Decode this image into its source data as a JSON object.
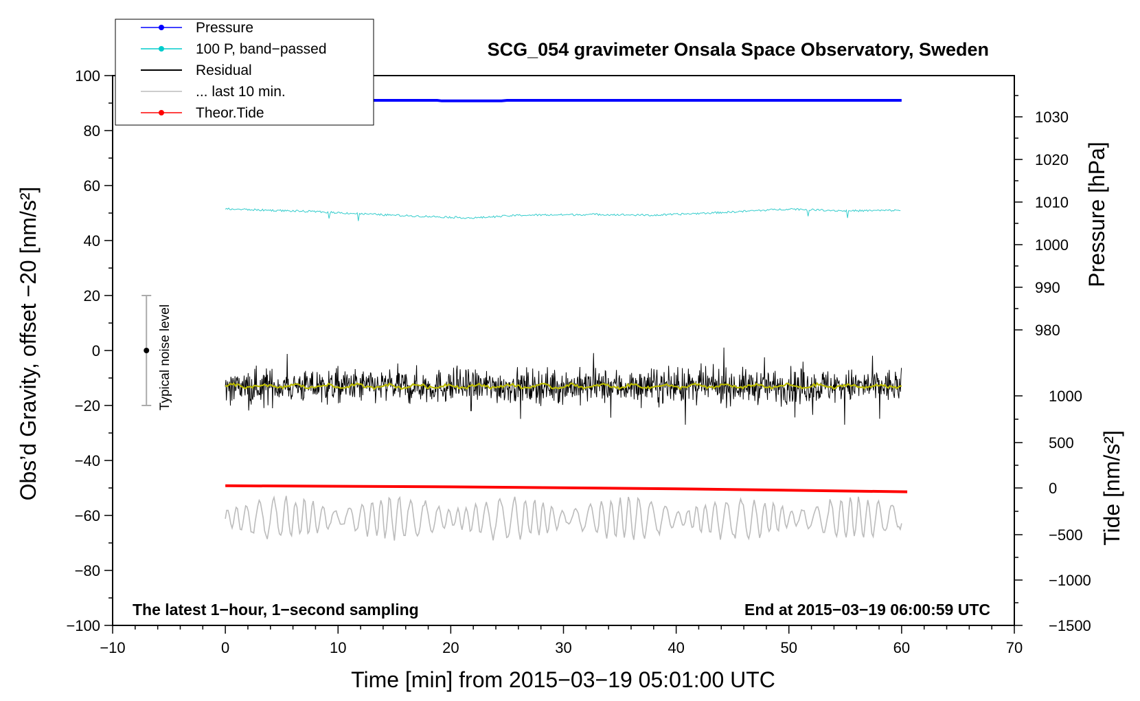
{
  "chart_data": {
    "type": "line",
    "title": "SCG_054 gravimeter Onsala Space Observatory, Sweden",
    "xlabel": "Time [min] from 2015−03−19 05:01:00 UTC",
    "ylabel_left": "Obs’d Gravity, offset −20 [nm/s²]",
    "ylabel_pressure": "Pressure [hPa]",
    "ylabel_tide": "Tide [nm/s²]",
    "xlim": [
      -10,
      70
    ],
    "ylim": [
      -100,
      100
    ],
    "x_ticks": [
      -10,
      0,
      10,
      20,
      30,
      40,
      50,
      60,
      70
    ],
    "x_tick_labels": [
      "−10",
      "0",
      "10",
      "20",
      "30",
      "40",
      "50",
      "60",
      "70"
    ],
    "y_ticks": [
      100,
      80,
      60,
      40,
      20,
      0,
      -20,
      -40,
      -60,
      -80,
      -100
    ],
    "y_tick_labels": [
      "100",
      "80",
      "60",
      "40",
      "20",
      "0",
      "−20",
      "−40",
      "−60",
      "−80",
      "−100"
    ],
    "pressure_axis": {
      "ticks": [
        1030,
        1020,
        1010,
        1000,
        990,
        980
      ],
      "tick_labels": [
        "1030",
        "1020",
        "1010",
        "1000",
        "990",
        "980"
      ],
      "gravity_at": [
        85,
        69.5,
        54,
        38.5,
        23,
        7.5
      ]
    },
    "tide_axis": {
      "ticks": [
        1000,
        500,
        0,
        -500,
        -1000,
        -1500
      ],
      "tick_labels": [
        "1000",
        "500",
        "0",
        "−500",
        "−1000",
        "−1500"
      ],
      "gravity_at": [
        -16.5,
        -33.5,
        -50,
        -67,
        -83.5,
        -100
      ]
    },
    "legend": [
      {
        "label": "Pressure",
        "color": "#0000ff",
        "marker": true
      },
      {
        "label": "100 P, band−passed",
        "color": "#00cccc",
        "marker": true
      },
      {
        "label": "Residual",
        "color": "#000000",
        "marker": false
      },
      {
        "label": "... last 10 min.",
        "color": "#bbbbbb",
        "marker": false
      },
      {
        "label": "Theor.Tide",
        "color": "#ff0000",
        "marker": true
      }
    ],
    "legend_position": "top-left",
    "annotations": {
      "left": "The latest 1−hour, 1−second sampling",
      "right": "End at 2015−03−19 06:00:59 UTC"
    },
    "noise_level": {
      "label": "Typical noise level",
      "x": -7,
      "center": 0,
      "range": [
        -20,
        20
      ]
    },
    "series": [
      {
        "name": "Pressure",
        "color": "#0000ff",
        "x": [
          0,
          18.8,
          19.2,
          24.5,
          25,
          60
        ],
        "values": [
          91,
          91,
          90.8,
          90.8,
          91,
          91
        ]
      },
      {
        "name": "100 P, band−passed",
        "color": "#33cccc",
        "x": [
          0,
          8,
          15,
          22,
          26,
          33,
          38,
          44,
          50,
          55,
          60
        ],
        "values": [
          51.5,
          50.5,
          49.2,
          48.2,
          49.2,
          49.5,
          49.2,
          50.2,
          51.5,
          50.8,
          51
        ]
      },
      {
        "name": "Residual",
        "color": "#000000",
        "x_range": [
          0,
          60
        ],
        "mean": -13,
        "typical_range": [
          -27,
          4
        ]
      },
      {
        "name": "Residual smoothed",
        "color": "#bbbb00",
        "x_range": [
          0,
          60
        ],
        "mean": -13
      },
      {
        "name": "Theor.Tide",
        "color": "#ff0000",
        "x": [
          0,
          20,
          40,
          60.5
        ],
        "values": [
          -49.2,
          -49.6,
          -50.3,
          -51.4
        ]
      },
      {
        "name": "... last 10 min.",
        "color": "#bbbbbb",
        "x_range": [
          0,
          60
        ],
        "mean": -61,
        "typical_range": [
          -75,
          -48
        ]
      }
    ]
  }
}
